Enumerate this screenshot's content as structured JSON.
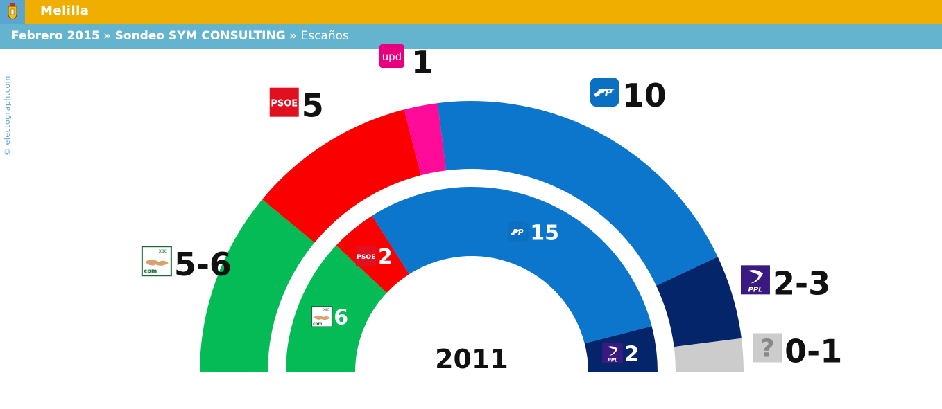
{
  "header": {
    "region": "Melilla",
    "breadcrumb": {
      "date": "Febrero 2015",
      "separator": "»",
      "poll": "Sondeo SYM CONSULTING",
      "metric": "Escaños"
    }
  },
  "credit": "© electograph.com",
  "colors": {
    "header_bar": "#f0ae00",
    "sub_bar": "#64b4cf"
  },
  "chart_data": {
    "type": "parliament-semicircle",
    "outer_ring": {
      "label": "",
      "parties": [
        {
          "party": "CpM",
          "seats_label": "5-6",
          "seats": 5.5,
          "color": "#05bb55",
          "icon": "cpm-logo"
        },
        {
          "party": "PSOE",
          "seats_label": "5",
          "seats": 5,
          "color": "#fa0000",
          "icon": "psoe-logo"
        },
        {
          "party": "UPyD",
          "seats_label": "1",
          "seats": 1,
          "color": "#ff0b9a",
          "icon": "upd-logo"
        },
        {
          "party": "PP",
          "seats_label": "10",
          "seats": 10,
          "color": "#0b76cb",
          "icon": "pp-logo"
        },
        {
          "party": "PPL",
          "seats_label": "2-3",
          "seats": 2.5,
          "color": "#05256a",
          "icon": "ppl-logo"
        },
        {
          "party": "Otros",
          "seats_label": "0-1",
          "seats": 1,
          "color": "#cccccc",
          "icon": "unknown-logo"
        }
      ]
    },
    "inner_ring": {
      "label": "2011",
      "parties": [
        {
          "party": "CpM",
          "seats_label": "6",
          "seats": 6,
          "color": "#05bb55",
          "icon": "cpm-logo"
        },
        {
          "party": "PSOE",
          "seats_label": "2",
          "seats": 2,
          "color": "#fa0000",
          "icon": "psoe-logo"
        },
        {
          "party": "PP",
          "seats_label": "15",
          "seats": 15,
          "color": "#0b76cb",
          "icon": "pp-logo"
        },
        {
          "party": "PPL",
          "seats_label": "2",
          "seats": 2,
          "color": "#05256a",
          "icon": "ppl-logo"
        }
      ]
    }
  }
}
